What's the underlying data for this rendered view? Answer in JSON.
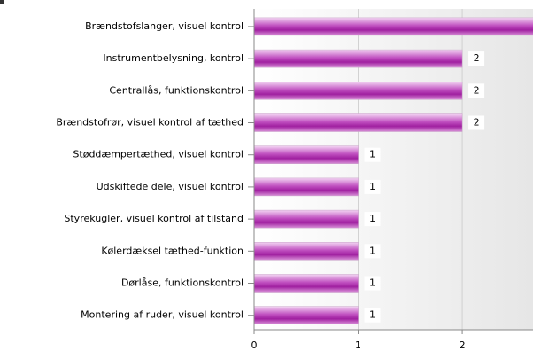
{
  "chart_data": {
    "type": "bar",
    "orientation": "horizontal",
    "categories": [
      "Brændstofslanger, visuel kontrol",
      "Instrumentbelysning, kontrol",
      "Centrallås, funktionskontrol",
      "Brændstofrør, visuel kontrol af tæthed",
      "Støddæmpertæthed, visuel kontrol",
      "Udskiftede dele, visuel kontrol",
      "Styrekugler, visuel kontrol af tilstand",
      "Kølerdæksel tæthed-funktion",
      "Dørlåse, funktionskontrol",
      "Montering af ruder, visuel kontrol"
    ],
    "values": [
      3,
      2,
      2,
      2,
      1,
      1,
      1,
      1,
      1,
      1
    ],
    "color": "#b030b0",
    "xlim": [
      0,
      2.68
    ],
    "xticks": [
      0,
      1,
      2
    ],
    "grid": true
  }
}
